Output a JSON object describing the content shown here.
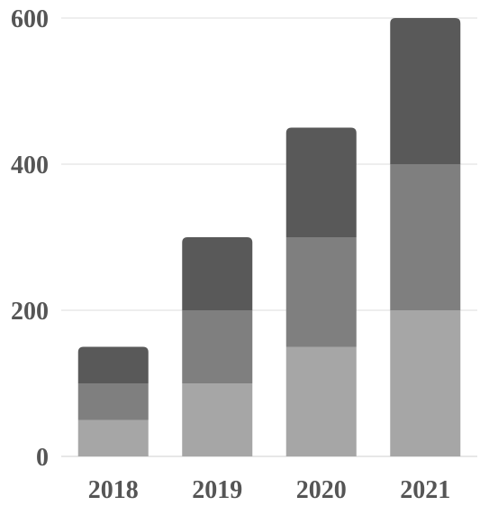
{
  "chart_data": {
    "type": "bar",
    "stacked": true,
    "categories": [
      "2018",
      "2019",
      "2020",
      "2021"
    ],
    "series": [
      {
        "values": [
          50,
          100,
          150,
          200
        ],
        "color": "#a6a6a6"
      },
      {
        "values": [
          50,
          100,
          150,
          200
        ],
        "color": "#7f7f7f"
      },
      {
        "values": [
          50,
          100,
          150,
          200
        ],
        "color": "#595959"
      }
    ],
    "ylim": [
      0,
      600
    ],
    "yticks": [
      "0",
      "200",
      "400",
      "600"
    ],
    "ytick_values": [
      0,
      200,
      400,
      600
    ],
    "grid": true,
    "legend": "none",
    "title": "",
    "xlabel": "",
    "ylabel": ""
  }
}
